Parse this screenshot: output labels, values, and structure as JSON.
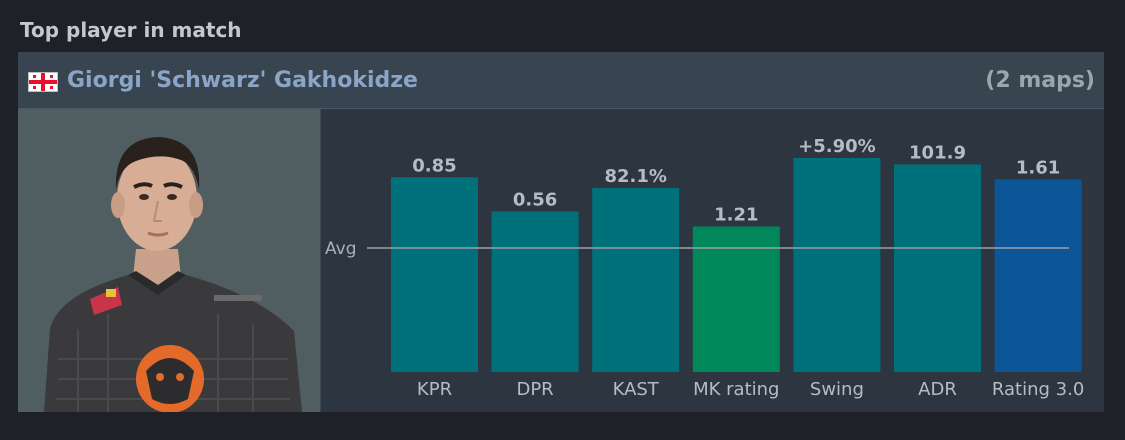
{
  "section_title": "Top player in match",
  "player": {
    "name": "Giorgi 'Schwarz' Gakhokidze",
    "maps": "(2 maps)",
    "flag_icon": "georgia-flag-icon"
  },
  "colors": {
    "default_bar": "#00717a",
    "highlight_bar": "#00875a",
    "rating_bar": "#0c5596",
    "avg_line": "#9aa0a8"
  },
  "chart_data": {
    "type": "bar",
    "reference_line": "Avg",
    "categories": [
      "KPR",
      "DPR",
      "KAST",
      "MK rating",
      "Swing",
      "ADR",
      "Rating 3.0"
    ],
    "value_labels": [
      "0.85",
      "0.56",
      "82.1%",
      "1.21",
      "+5.90%",
      "101.9",
      "1.61"
    ],
    "relative_heights": [
      0.91,
      0.75,
      0.86,
      0.68,
      1.0,
      0.97,
      0.9
    ],
    "bar_colors": [
      "#00717a",
      "#00717a",
      "#00717a",
      "#00875a",
      "#00717a",
      "#00717a",
      "#0c5596"
    ]
  }
}
